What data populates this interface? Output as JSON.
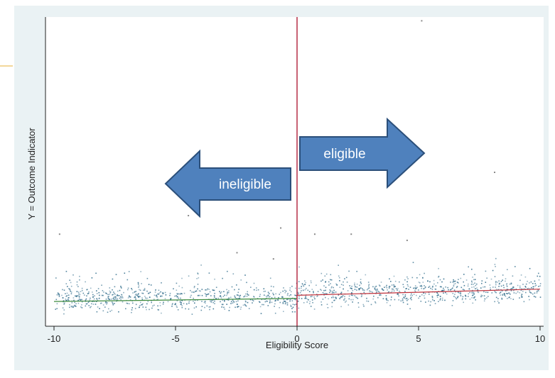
{
  "chart_data": {
    "type": "scatter",
    "xlabel": "Eligibility Score",
    "ylabel": "Y = Outcome Indicator",
    "xlim": [
      -10,
      10
    ],
    "xticks": [
      -10,
      -5,
      0,
      5,
      10
    ],
    "cutoff": 0,
    "grid": false,
    "colors": {
      "points": "#2e6b8a",
      "fit_left": "#3c8a3c",
      "fit_right": "#c0303a",
      "cutoff_line": "#b0203a",
      "arrow_fill": "#4f81bd",
      "arrow_stroke": "#2b4f7a"
    },
    "arrows": [
      {
        "label": "ineligible",
        "direction": "left"
      },
      {
        "label": "eligible",
        "direction": "right"
      }
    ],
    "outliers": [
      {
        "x": -9.8,
        "y": 0.3
      },
      {
        "x": -4.5,
        "y": 0.36
      },
      {
        "x": -0.8,
        "y": 0.46
      },
      {
        "x": -0.7,
        "y": 0.32
      },
      {
        "x": 0.7,
        "y": 0.3
      },
      {
        "x": 2.2,
        "y": 0.3
      },
      {
        "x": 2.5,
        "y": 0.57
      },
      {
        "x": 5.1,
        "y": 0.99
      },
      {
        "x": 8.1,
        "y": 0.5
      },
      {
        "x": -2.5,
        "y": 0.24
      },
      {
        "x": -1.0,
        "y": 0.22
      },
      {
        "x": 4.5,
        "y": 0.28
      }
    ],
    "fit_left": {
      "x": [
        -10,
        0
      ],
      "y": [
        0.08,
        0.09
      ]
    },
    "fit_right": {
      "x": [
        0,
        10
      ],
      "y": [
        0.1,
        0.12
      ]
    }
  }
}
